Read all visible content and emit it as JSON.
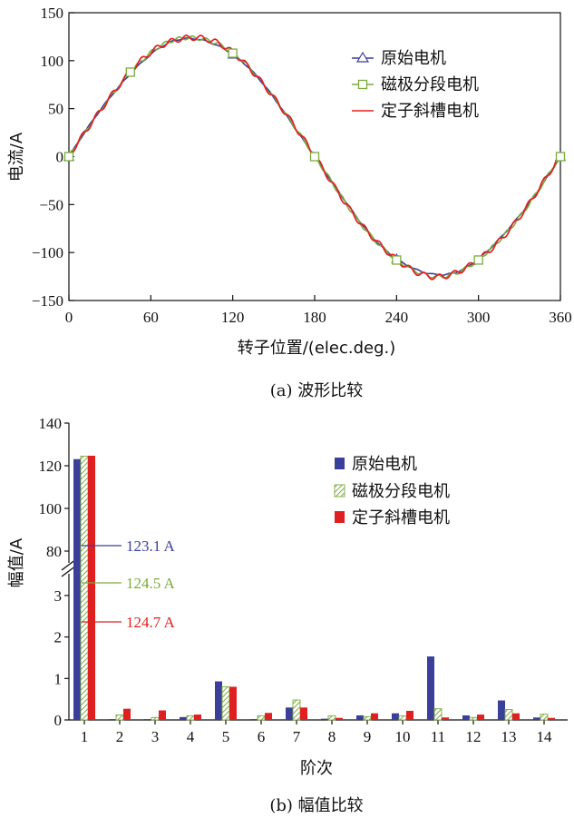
{
  "colors": {
    "blue": "#3c3f9a",
    "green": "#7aab3c",
    "red": "#e02020",
    "axis": "#111111"
  },
  "chart_data": [
    {
      "type": "line",
      "caption": "(a) 波形比较",
      "xlabel": "转子位置/(elec.deg.)",
      "ylabel": "电流/A",
      "xlim": [
        0,
        360
      ],
      "ylim": [
        -150,
        150
      ],
      "xticks": [
        "0",
        "60",
        "120",
        "180",
        "240",
        "300",
        "360"
      ],
      "yticks": [
        "−150",
        "−100",
        "−50",
        "0",
        "50",
        "100",
        "150"
      ],
      "grid": false,
      "legend_position": "top-right",
      "series": [
        {
          "name": "原始电机",
          "marker": "triangle",
          "amplitude": 123.1,
          "x": [
            0,
            45,
            90,
            135,
            180,
            225,
            270,
            315,
            360
          ],
          "y": [
            0,
            87,
            123.1,
            87,
            0,
            -87,
            -123.1,
            -87,
            0
          ]
        },
        {
          "name": "磁极分段电机",
          "marker": "square",
          "amplitude": 124.5,
          "x": [
            0,
            45,
            90,
            135,
            180,
            225,
            270,
            315,
            360
          ],
          "y": [
            0,
            88,
            124.5,
            88,
            0,
            -88,
            -124.5,
            -88,
            0
          ]
        },
        {
          "name": "定子斜槽电机",
          "marker": "none",
          "amplitude": 124.7,
          "x": [
            0,
            45,
            90,
            135,
            180,
            225,
            270,
            315,
            360
          ],
          "y": [
            0,
            88.2,
            124.7,
            88.2,
            0,
            -88.2,
            -124.7,
            -88.2,
            0
          ]
        }
      ]
    },
    {
      "type": "bar",
      "caption": "(b) 幅值比较",
      "xlabel": "阶次",
      "ylabel": "幅值/A",
      "categories": [
        "1",
        "2",
        "3",
        "4",
        "5",
        "6",
        "7",
        "8",
        "9",
        "10",
        "11",
        "12",
        "13",
        "14"
      ],
      "yticks_low": [
        "0",
        "1",
        "2",
        "3"
      ],
      "yticks_high": [
        "80",
        "100",
        "120",
        "140"
      ],
      "ylim_low": [
        0,
        3.5
      ],
      "ylim_high": [
        80,
        140
      ],
      "legend_position": "top-right",
      "series": [
        {
          "name": "原始电机",
          "fill": "solid-blue",
          "values": [
            123.1,
            0.02,
            0.02,
            0.07,
            0.93,
            0.02,
            0.3,
            0.03,
            0.11,
            0.16,
            1.53,
            0.11,
            0.47,
            0.06
          ]
        },
        {
          "name": "磁极分段电机",
          "fill": "hatched-green",
          "values": [
            124.5,
            0.12,
            0.06,
            0.1,
            0.8,
            0.1,
            0.48,
            0.1,
            0.08,
            0.1,
            0.27,
            0.06,
            0.25,
            0.14
          ]
        },
        {
          "name": "定子斜槽电机",
          "fill": "solid-red",
          "values": [
            124.7,
            0.27,
            0.23,
            0.13,
            0.8,
            0.17,
            0.3,
            0.05,
            0.16,
            0.22,
            0.06,
            0.13,
            0.16,
            0.05
          ]
        }
      ],
      "annotations": [
        "123.1 A",
        "124.5 A",
        "124.7 A"
      ]
    }
  ]
}
